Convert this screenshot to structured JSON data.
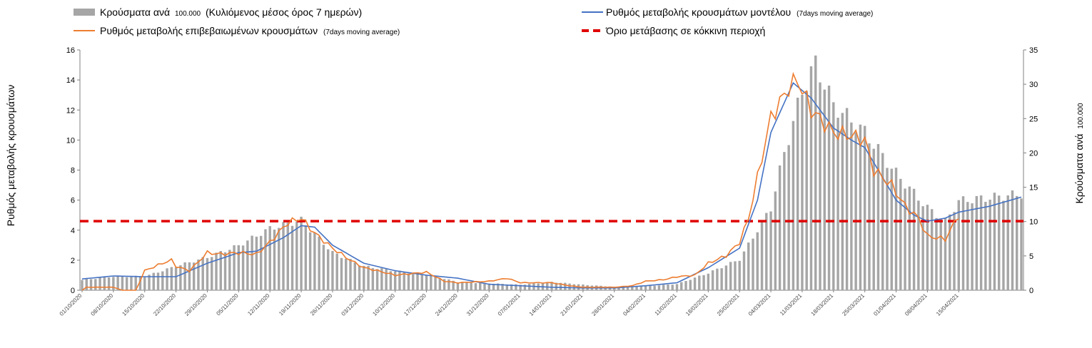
{
  "chart_data": {
    "type": "bar+line",
    "title": "",
    "ylabel_left": "Ρυθμός μεταβολής κρουσμάτων",
    "ylabel_right": "Κρούσματα ανά",
    "ylabel_right_small": "100.000",
    "ylim_left": [
      0,
      16
    ],
    "ylim_right": [
      0,
      35
    ],
    "yticks_left": [
      "0",
      "2",
      "4",
      "6",
      "8",
      "10",
      "12",
      "14",
      "16"
    ],
    "yticks_right": [
      "0",
      "5",
      "10",
      "15",
      "20",
      "25",
      "30",
      "35"
    ],
    "xtick_labels": [
      "01/10/2020",
      "08/10/2020",
      "15/10/2020",
      "22/10/2020",
      "29/10/2020",
      "05/11/2020",
      "12/11/2020",
      "19/11/2020",
      "26/11/2020",
      "03/12/2020",
      "10/12/2020",
      "17/12/2020",
      "24/12/2020",
      "31/12/2020",
      "07/01/2021",
      "14/01/2021",
      "21/01/2021",
      "28/01/2021",
      "04/02/2021",
      "11/02/2021",
      "18/02/2021",
      "25/02/2021",
      "04/03/2021",
      "11/03/2021",
      "18/03/2021",
      "25/03/2021",
      "01/04/2021",
      "08/04/2021",
      "15/04/2021"
    ],
    "legend": {
      "bars_main": "Κρούσματα ανά",
      "bars_mid": "100.000",
      "bars_rest": "(Κυλιόμενος μέσος όρος 7 ημερών)",
      "model_main": "Ρυθμός μεταβολής κρουσμάτων μοντέλου",
      "model_small": "(7days moving average)",
      "confirmed_main": "Ρυθμός μεταβολής επιβεβαιωμένων κρουσμάτων",
      "confirmed_small": "(7days moving average)",
      "threshold_main": "Όριο μετάβασης σε κόκκινη περιοχή"
    },
    "threshold": 4.6,
    "colors": {
      "bars": "#a6a6a6",
      "model": "#4472c4",
      "confirmed": "#ed7d31",
      "threshold": "#e00000"
    },
    "days_count": 197,
    "bar_keypoints_day_value": [
      [
        0,
        1.5
      ],
      [
        7,
        2.0
      ],
      [
        14,
        2.0
      ],
      [
        21,
        3.5
      ],
      [
        28,
        4.8
      ],
      [
        35,
        6.5
      ],
      [
        42,
        9.0
      ],
      [
        49,
        10.2
      ],
      [
        56,
        5.5
      ],
      [
        63,
        3.5
      ],
      [
        70,
        2.8
      ],
      [
        77,
        2.3
      ],
      [
        84,
        1.2
      ],
      [
        91,
        1.0
      ],
      [
        98,
        0.8
      ],
      [
        105,
        1.2
      ],
      [
        112,
        0.8
      ],
      [
        119,
        0.5
      ],
      [
        126,
        0.6
      ],
      [
        133,
        0.9
      ],
      [
        140,
        2.5
      ],
      [
        147,
        4.5
      ],
      [
        154,
        12.0
      ],
      [
        157,
        20.0
      ],
      [
        161,
        29.0
      ],
      [
        164,
        33.0
      ],
      [
        168,
        27.0
      ],
      [
        175,
        23.0
      ],
      [
        182,
        17.0
      ],
      [
        189,
        12.0
      ],
      [
        193,
        10.0
      ],
      [
        196,
        13.0
      ],
      [
        203,
        13.5
      ],
      [
        210,
        14.0
      ]
    ],
    "model_keypoints_day_value": [
      [
        0,
        0.75
      ],
      [
        7,
        0.95
      ],
      [
        14,
        0.9
      ],
      [
        21,
        0.9
      ],
      [
        28,
        1.8
      ],
      [
        35,
        2.5
      ],
      [
        39,
        2.6
      ],
      [
        45,
        3.5
      ],
      [
        49,
        4.3
      ],
      [
        52,
        4.2
      ],
      [
        56,
        3.0
      ],
      [
        63,
        1.8
      ],
      [
        70,
        1.3
      ],
      [
        77,
        1.0
      ],
      [
        84,
        0.8
      ],
      [
        91,
        0.4
      ],
      [
        98,
        0.3
      ],
      [
        105,
        0.2
      ],
      [
        112,
        0.15
      ],
      [
        119,
        0.15
      ],
      [
        126,
        0.3
      ],
      [
        133,
        0.5
      ],
      [
        140,
        1.5
      ],
      [
        147,
        2.8
      ],
      [
        151,
        6.0
      ],
      [
        154,
        10.5
      ],
      [
        159,
        13.8
      ],
      [
        163,
        12.8
      ],
      [
        168,
        10.8
      ],
      [
        172,
        10.0
      ],
      [
        175,
        9.5
      ],
      [
        179,
        7.5
      ],
      [
        182,
        6.0
      ],
      [
        186,
        5.0
      ],
      [
        189,
        4.6
      ],
      [
        193,
        4.8
      ],
      [
        196,
        5.2
      ],
      [
        203,
        5.6
      ],
      [
        210,
        6.2
      ]
    ],
    "confirmed_keypoints_day_value": [
      [
        0,
        0.0
      ],
      [
        1,
        0.2
      ],
      [
        7,
        0.2
      ],
      [
        9,
        0.0
      ],
      [
        12,
        0.0
      ],
      [
        14,
        1.3
      ],
      [
        18,
        1.8
      ],
      [
        20,
        2.0
      ],
      [
        21,
        1.6
      ],
      [
        24,
        1.3
      ],
      [
        28,
        2.5
      ],
      [
        31,
        2.4
      ],
      [
        35,
        2.5
      ],
      [
        39,
        2.4
      ],
      [
        42,
        3.2
      ],
      [
        46,
        4.5
      ],
      [
        49,
        4.8
      ],
      [
        52,
        3.8
      ],
      [
        56,
        2.8
      ],
      [
        60,
        2.0
      ],
      [
        63,
        1.5
      ],
      [
        66,
        1.3
      ],
      [
        70,
        1.0
      ],
      [
        77,
        1.2
      ],
      [
        81,
        0.6
      ],
      [
        84,
        0.5
      ],
      [
        91,
        0.6
      ],
      [
        95,
        0.8
      ],
      [
        98,
        0.5
      ],
      [
        101,
        0.5
      ],
      [
        105,
        0.5
      ],
      [
        109,
        0.3
      ],
      [
        112,
        0.2
      ],
      [
        119,
        0.2
      ],
      [
        123,
        0.3
      ],
      [
        126,
        0.6
      ],
      [
        130,
        0.7
      ],
      [
        133,
        0.9
      ],
      [
        137,
        1.0
      ],
      [
        140,
        1.8
      ],
      [
        144,
        2.3
      ],
      [
        147,
        3.2
      ],
      [
        149,
        4.8
      ],
      [
        151,
        7.5
      ],
      [
        154,
        11.5
      ],
      [
        158,
        13.5
      ],
      [
        160,
        14.0
      ],
      [
        163,
        12.0
      ],
      [
        168,
        10.5
      ],
      [
        172,
        10.3
      ],
      [
        175,
        10.0
      ],
      [
        177,
        8.0
      ],
      [
        181,
        7.0
      ],
      [
        184,
        5.6
      ],
      [
        187,
        4.8
      ],
      [
        189,
        3.6
      ],
      [
        193,
        3.4
      ],
      [
        196,
        5.0
      ]
    ]
  }
}
